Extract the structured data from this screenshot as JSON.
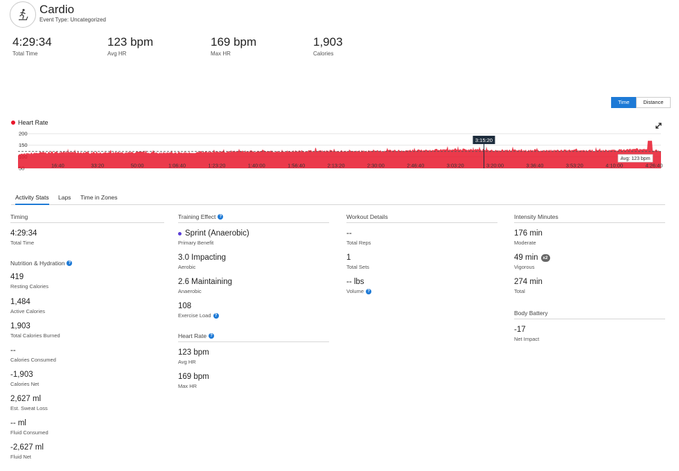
{
  "header": {
    "title": "Cardio",
    "subtitle": "Event Type: Uncategorized",
    "icon": "treadmill-runner-icon"
  },
  "kpis": [
    {
      "value": "4:29:34",
      "label": "Total Time"
    },
    {
      "value": "123 bpm",
      "label": "Avg HR"
    },
    {
      "value": "169 bpm",
      "label": "Max HR"
    },
    {
      "value": "1,903",
      "label": "Calories"
    }
  ],
  "toggle": {
    "time": "Time",
    "distance": "Distance",
    "selected": "Time"
  },
  "colors": {
    "accent": "#1e7ad6",
    "heart_rate": "#e8172b",
    "vigorous_purple": "#5b3fd6"
  },
  "chart_data": {
    "type": "area",
    "series": [
      {
        "name": "Heart Rate"
      }
    ],
    "y_ticks": [
      "200",
      "150",
      "100",
      "50"
    ],
    "ylim": [
      50,
      200
    ],
    "x_ticks": [
      "16:40",
      "33:20",
      "50:00",
      "1:06:40",
      "1:23:20",
      "1:40:00",
      "1:56:40",
      "2:13:20",
      "2:30:00",
      "2:46:40",
      "3:03:20",
      "3:20:00",
      "3:36:40",
      "3:53:20",
      "4:10:00",
      "4:26:40"
    ],
    "x_tick_seconds": [
      1000,
      2000,
      3000,
      4000,
      5000,
      6000,
      7000,
      8000,
      9000,
      10000,
      11000,
      12000,
      13000,
      14000,
      15000,
      16000
    ],
    "x_range_seconds": [
      0,
      16174
    ],
    "avg_line_label": "Avg: 123 bpm",
    "avg_value": 123,
    "max_value": 169,
    "cursor_label": "3:15:20",
    "cursor_seconds": 11720,
    "profile_seconds": [
      0,
      600,
      1200,
      1800,
      2400,
      3000,
      3600,
      4200,
      4800,
      5400,
      6000,
      6600,
      7200,
      7800,
      8400,
      9000,
      9600,
      10200,
      10800,
      11400,
      12000,
      12600,
      13200,
      13800,
      14400,
      15000,
      15600,
      16174
    ],
    "profile_bpm": [
      110,
      118,
      120,
      118,
      117,
      119,
      118,
      117,
      121,
      123,
      124,
      123,
      125,
      126,
      124,
      125,
      127,
      128,
      132,
      132,
      128,
      129,
      127,
      128,
      127,
      129,
      133,
      126
    ]
  },
  "tabs": [
    "Activity Stats",
    "Laps",
    "Time in Zones"
  ],
  "timing": {
    "title": "Timing",
    "value": "4:29:34",
    "label": "Total Time"
  },
  "nutrition": {
    "title": "Nutrition & Hydration",
    "items": [
      {
        "value": "419",
        "label": "Resting Calories"
      },
      {
        "value": "1,484",
        "label": "Active Calories"
      },
      {
        "value": "1,903",
        "label": "Total Calories Burned"
      },
      {
        "value": "--",
        "label": "Calories Consumed"
      },
      {
        "value": "-1,903",
        "label": "Calories Net"
      },
      {
        "value": "2,627 ml",
        "label": "Est. Sweat Loss"
      },
      {
        "value": "-- ml",
        "label": "Fluid Consumed"
      },
      {
        "value": "-2,627 ml",
        "label": "Fluid Net"
      }
    ]
  },
  "training_effect": {
    "title": "Training Effect",
    "items": [
      {
        "value": "Sprint (Anaerobic)",
        "label": "Primary Benefit"
      },
      {
        "value": "3.0 Impacting",
        "label": "Aerobic"
      },
      {
        "value": "2.6 Maintaining",
        "label": "Anaerobic"
      },
      {
        "value": "108",
        "label": "Exercise Load"
      }
    ]
  },
  "heart_rate": {
    "title": "Heart Rate",
    "items": [
      {
        "value": "123 bpm",
        "label": "Avg HR"
      },
      {
        "value": "169 bpm",
        "label": "Max HR"
      }
    ]
  },
  "workout": {
    "title": "Workout Details",
    "items": [
      {
        "value": "--",
        "label": "Total Reps"
      },
      {
        "value": "1",
        "label": "Total Sets"
      },
      {
        "value": "-- lbs",
        "label": "Volume"
      }
    ]
  },
  "intensity": {
    "title": "Intensity Minutes",
    "items": [
      {
        "value": "176 min",
        "label": "Moderate"
      },
      {
        "value": "49 min",
        "label": "Vigorous",
        "badge": "x2"
      },
      {
        "value": "274 min",
        "label": "Total"
      }
    ]
  },
  "body_battery": {
    "title": "Body Battery",
    "value": "-17",
    "label": "Net Impact"
  }
}
